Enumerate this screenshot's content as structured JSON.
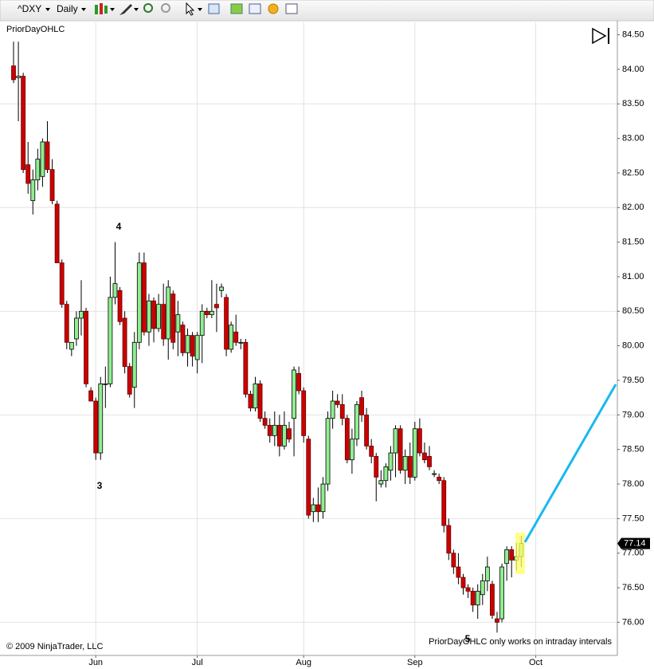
{
  "chart_data": {
    "type": "candlestick",
    "symbol": "^DXY",
    "interval": "Daily",
    "title": "PriorDayOHLC",
    "copyright": "© 2009 NinjaTrader, LLC",
    "notice": "PriorDayOHLC only works on intraday intervals",
    "wave_labels": [
      "4",
      "3",
      "5"
    ],
    "up_color": "#90ee90",
    "down_color": "#cc0000",
    "grid": true,
    "ylim": [
      75.52,
      84.68
    ],
    "yticks": [
      {
        "value": 76,
        "label": "76.00"
      },
      {
        "value": 76.5,
        "label": "76.50"
      },
      {
        "value": 77,
        "label": "77.00"
      },
      {
        "value": 77.5,
        "label": "77.50"
      },
      {
        "value": 78,
        "label": "78.00"
      },
      {
        "value": 78.5,
        "label": "78.50"
      },
      {
        "value": 79,
        "label": "79.00"
      },
      {
        "value": 79.5,
        "label": "79.50"
      },
      {
        "value": 80,
        "label": "80.00"
      },
      {
        "value": 80.5,
        "label": "80.50"
      },
      {
        "value": 81,
        "label": "81.00"
      },
      {
        "value": 81.5,
        "label": "81.50"
      },
      {
        "value": 82,
        "label": "82.00"
      },
      {
        "value": 82.5,
        "label": "82.50"
      },
      {
        "value": 83,
        "label": "83.00"
      },
      {
        "value": 83.5,
        "label": "83.50"
      },
      {
        "value": 84,
        "label": "84.00"
      },
      {
        "value": 84.5,
        "label": "84.50"
      }
    ],
    "categories": [
      null,
      null,
      null,
      null,
      null,
      null,
      null,
      null,
      null,
      null,
      null,
      null,
      null,
      null,
      null,
      null,
      null,
      "Jun",
      null,
      null,
      null,
      null,
      null,
      null,
      null,
      null,
      null,
      null,
      null,
      null,
      null,
      null,
      null,
      null,
      null,
      null,
      null,
      null,
      "Jul",
      null,
      null,
      null,
      null,
      null,
      null,
      null,
      null,
      null,
      null,
      null,
      null,
      null,
      null,
      null,
      null,
      null,
      null,
      null,
      null,
      null,
      "Aug",
      null,
      null,
      null,
      null,
      null,
      null,
      null,
      null,
      null,
      null,
      null,
      null,
      null,
      null,
      null,
      null,
      null,
      null,
      null,
      null,
      null,
      null,
      "Sep",
      null,
      null,
      null,
      null,
      null,
      null,
      null,
      null,
      null,
      null,
      null,
      null,
      null,
      null,
      null,
      null,
      null,
      null,
      null,
      null,
      null,
      null,
      null,
      null,
      "Oct",
      null,
      null,
      null,
      null,
      null,
      null,
      null,
      null,
      null,
      null,
      null,
      null,
      null,
      null,
      null
    ],
    "open": [
      84.05,
      83.88,
      83.9,
      82.62,
      82.1,
      82.4,
      82.45,
      82.95,
      82.55,
      82.05,
      81.2,
      80.6,
      79.95,
      80.1,
      80.4,
      80.5,
      79.35,
      79.2,
      78.45,
      79.45,
      79.45,
      80.7,
      80.8,
      80.4,
      79.7,
      79.4,
      80.05,
      81.2,
      80.2,
      80.65,
      80.25,
      80.6,
      80.1,
      80.75,
      80.2,
      80.3,
      79.9,
      80.15,
      79.8,
      80.15,
      80.5,
      80.45,
      80.6,
      80.8,
      80.7,
      79.95,
      80.2,
      80.05,
      80.05,
      79.3,
      79.1,
      79.45,
      78.95,
      78.85,
      78.7,
      78.85,
      78.55,
      78.8,
      78.95,
      79.6,
      79.35,
      78.65,
      77.6,
      77.7,
      77.6,
      78.0,
      78.95,
      79.2,
      79.15,
      78.95,
      78.35,
      78.65,
      79.25,
      79.0,
      78.55,
      78.4,
      78.0,
      78.05,
      78.2,
      78.45,
      78.8,
      78.2,
      78.4,
      78.1,
      78.8,
      78.45,
      78.4,
      78.15,
      78.1,
      78.05,
      77.4,
      77.0,
      76.8,
      76.65,
      76.5,
      76.45,
      76.25,
      76.4,
      76.6,
      76.55,
      76.05,
      76.05,
      76.85,
      77.05,
      76.9,
      76.95,
      null,
      null,
      null,
      null,
      null,
      null,
      null,
      null,
      null,
      null,
      null,
      null,
      null,
      null,
      null,
      null,
      null,
      null
    ],
    "high": [
      84.4,
      84.4,
      83.95,
      82.95,
      82.55,
      82.85,
      83.0,
      83.25,
      82.7,
      82.1,
      81.25,
      80.65,
      80.05,
      80.5,
      80.95,
      80.55,
      79.4,
      79.25,
      79.55,
      79.7,
      81.0,
      81.5,
      80.85,
      80.5,
      79.75,
      80.2,
      81.35,
      81.35,
      80.75,
      80.7,
      80.75,
      80.9,
      80.95,
      80.8,
      80.65,
      80.35,
      80.25,
      80.2,
      80.2,
      80.6,
      80.55,
      80.95,
      80.9,
      80.9,
      80.75,
      80.35,
      80.45,
      80.1,
      80.1,
      79.35,
      79.55,
      79.5,
      79.05,
      78.95,
      79.05,
      79.0,
      79.05,
      78.9,
      79.7,
      79.7,
      79.4,
      78.7,
      77.8,
      77.95,
      78.1,
      79.05,
      79.35,
      79.3,
      79.3,
      79.0,
      78.8,
      79.2,
      79.35,
      79.1,
      78.65,
      78.45,
      78.2,
      78.3,
      78.55,
      78.85,
      78.85,
      78.5,
      78.6,
      78.9,
      78.95,
      78.6,
      78.55,
      78.2,
      78.15,
      78.1,
      77.5,
      77.05,
      77.0,
      76.7,
      76.55,
      76.5,
      76.55,
      76.7,
      76.95,
      76.6,
      76.15,
      76.85,
      77.1,
      77.1,
      77.15,
      77.25,
      null,
      null,
      null,
      null,
      null,
      null,
      null,
      null,
      null,
      null,
      null,
      null,
      null,
      null,
      null,
      null,
      null,
      null
    ],
    "low": [
      83.8,
      83.25,
      82.5,
      82.2,
      81.9,
      82.25,
      82.3,
      82.5,
      82.05,
      81.2,
      80.55,
      79.95,
      79.85,
      80.0,
      80.15,
      79.4,
      79.2,
      78.35,
      78.35,
      79.1,
      79.4,
      80.6,
      80.3,
      79.6,
      79.25,
      79.1,
      79.95,
      80.15,
      80.0,
      80.05,
      80.2,
      80.0,
      79.8,
      79.95,
      79.85,
      79.85,
      79.7,
      79.7,
      79.6,
      79.75,
      80.4,
      80.4,
      80.2,
      80.7,
      79.85,
      79.9,
      80.0,
      79.95,
      79.25,
      79.05,
      79.05,
      78.9,
      78.8,
      78.6,
      78.55,
      78.4,
      78.5,
      78.6,
      78.4,
      79.3,
      78.6,
      77.5,
      77.45,
      77.45,
      77.5,
      77.9,
      78.8,
      79.1,
      78.85,
      78.3,
      78.15,
      78.55,
      78.9,
      78.5,
      78.3,
      77.75,
      77.95,
      77.95,
      78.05,
      78.1,
      78.15,
      78.0,
      78.0,
      78.05,
      78.4,
      78.3,
      78.2,
      78.1,
      78.0,
      77.3,
      76.9,
      76.7,
      76.55,
      76.4,
      76.35,
      76.15,
      76.05,
      76.25,
      76.45,
      76.05,
      75.85,
      76.0,
      76.6,
      76.65,
      76.75,
      76.8,
      null,
      null,
      null,
      null,
      null,
      null,
      null,
      null,
      null,
      null,
      null,
      null,
      null,
      null,
      null,
      null,
      null,
      null
    ],
    "close": [
      83.85,
      83.9,
      82.55,
      82.35,
      82.4,
      82.7,
      82.95,
      82.55,
      82.1,
      81.2,
      80.6,
      80.05,
      80.05,
      80.4,
      80.5,
      79.45,
      79.2,
      78.45,
      79.45,
      79.45,
      80.7,
      80.9,
      80.35,
      79.7,
      79.3,
      80.05,
      81.2,
      80.2,
      80.65,
      80.25,
      80.6,
      80.1,
      80.85,
      80.05,
      80.45,
      79.9,
      80.15,
      79.85,
      80.15,
      80.5,
      80.45,
      80.5,
      80.55,
      80.85,
      79.95,
      80.3,
      80.05,
      80.05,
      79.3,
      79.1,
      79.45,
      78.95,
      78.85,
      78.7,
      78.85,
      78.55,
      78.85,
      78.65,
      79.65,
      79.35,
      78.7,
      77.55,
      77.7,
      77.6,
      78.0,
      78.95,
      79.2,
      79.15,
      78.95,
      78.35,
      78.65,
      79.15,
      79.0,
      78.55,
      78.4,
      78.1,
      78.05,
      78.25,
      78.45,
      78.8,
      78.2,
      78.4,
      78.1,
      78.8,
      78.45,
      78.35,
      78.25,
      78.15,
      78.05,
      77.4,
      77.0,
      76.8,
      76.65,
      76.5,
      76.45,
      76.25,
      76.45,
      76.6,
      76.8,
      76.1,
      76.0,
      76.8,
      77.05,
      76.9,
      76.95,
      77.14,
      null,
      null,
      null,
      null,
      null,
      null,
      null,
      null,
      null,
      null,
      null,
      null,
      null,
      null,
      null,
      null,
      null,
      null
    ]
  }
}
